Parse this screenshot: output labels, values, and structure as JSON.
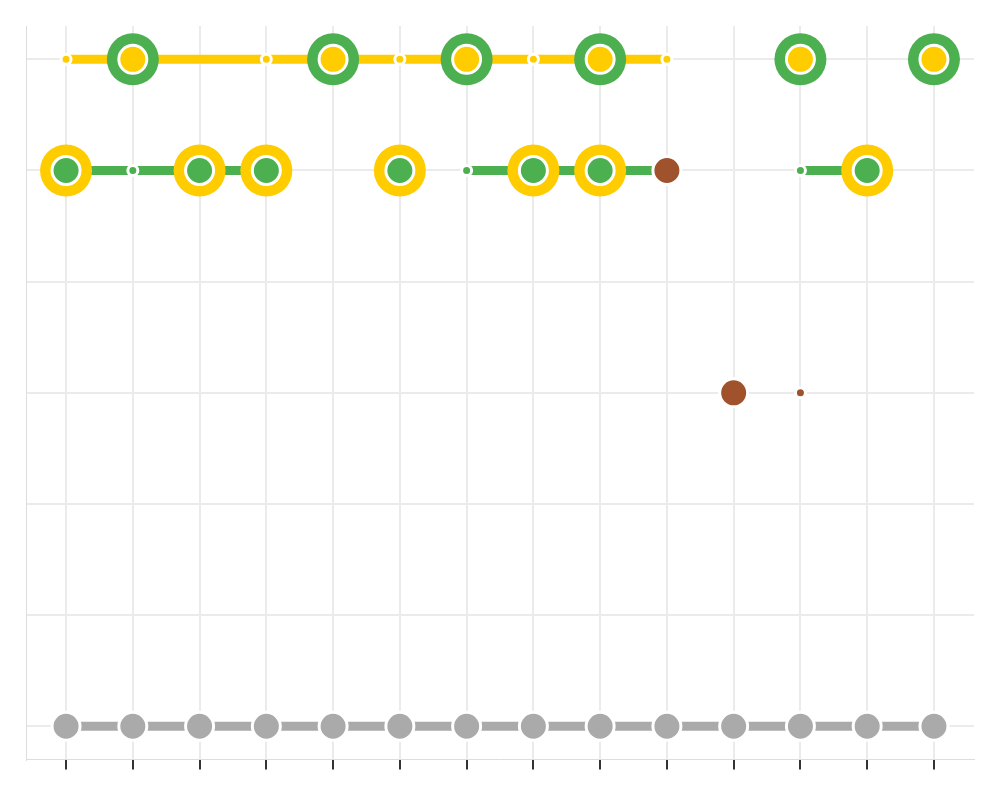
{
  "chart_data": {
    "type": "scatter",
    "xlim": [
      0.4,
      14.6
    ],
    "xticks": [
      1,
      2,
      3,
      4,
      5,
      6,
      7,
      8,
      9,
      10,
      11,
      12,
      13,
      14
    ],
    "ylim": [
      -0.3,
      6.3
    ],
    "yticks": [
      0,
      1,
      2,
      3,
      4,
      5,
      6
    ],
    "grid": true,
    "tick_labels": false,
    "series": [
      {
        "color": "#aaaaaa",
        "marker": "circle",
        "x": [
          1,
          2,
          3,
          4,
          5,
          6,
          7,
          8,
          9,
          10,
          11,
          12,
          13,
          14
        ],
        "values": [
          0,
          0,
          0,
          0,
          0,
          0,
          0,
          0,
          0,
          0,
          0,
          0,
          0,
          0
        ]
      },
      {
        "color": "#ffcc00",
        "marker": "circle",
        "x": [
          2,
          5,
          7,
          9,
          12,
          14
        ],
        "values": [
          6,
          6,
          6,
          6,
          6,
          6
        ]
      },
      {
        "color": "#4caf50",
        "marker": "circle",
        "x": [
          1,
          3,
          4,
          6,
          8,
          9,
          13
        ],
        "values": [
          5,
          5,
          5,
          5,
          5,
          5,
          5
        ]
      },
      {
        "color": "#a0522d",
        "marker": "circle",
        "x": [
          10,
          11
        ],
        "values": [
          5,
          3
        ]
      },
      {
        "color": "#ffcc00",
        "marker": "dot",
        "x": [
          1,
          4,
          6,
          8,
          10
        ],
        "values": [
          6,
          6,
          6,
          6,
          6
        ]
      },
      {
        "color": "#4caf50",
        "marker": "dot",
        "x": [
          2,
          7,
          12
        ],
        "values": [
          5,
          5,
          5
        ]
      },
      {
        "color": "#a0522d",
        "marker": "dot",
        "x": [
          12
        ],
        "values": [
          3
        ]
      },
      {
        "color": "#4caf50",
        "marker": "blob",
        "x": [
          2,
          5,
          7,
          9,
          12,
          14
        ],
        "values": [
          6,
          6,
          6,
          6,
          6,
          6
        ]
      },
      {
        "color": "#ffcc00",
        "marker": "blob",
        "x": [
          1,
          3,
          4,
          6,
          8,
          9,
          13
        ],
        "values": [
          5,
          5,
          5,
          5,
          5,
          5,
          5
        ]
      },
      {
        "color": "#ffcc00",
        "type": "line",
        "line_style": "solid",
        "x": [
          1,
          10
        ],
        "values": [
          6,
          6
        ]
      },
      {
        "color": "#4caf50",
        "type": "line",
        "line_style": "solid",
        "x": [
          1,
          4
        ],
        "values": [
          5,
          5
        ]
      },
      {
        "color": "#4caf50",
        "type": "line",
        "line_style": "solid",
        "x": [
          7,
          10
        ],
        "values": [
          5,
          5
        ]
      },
      {
        "color": "#4caf50",
        "type": "line",
        "line_style": "solid",
        "x": [
          12,
          13
        ],
        "values": [
          5,
          5
        ]
      },
      {
        "color": "#aaaaaa",
        "type": "line",
        "line_style": "solid",
        "x": [
          1,
          14
        ],
        "values": [
          0,
          0
        ]
      }
    ]
  }
}
